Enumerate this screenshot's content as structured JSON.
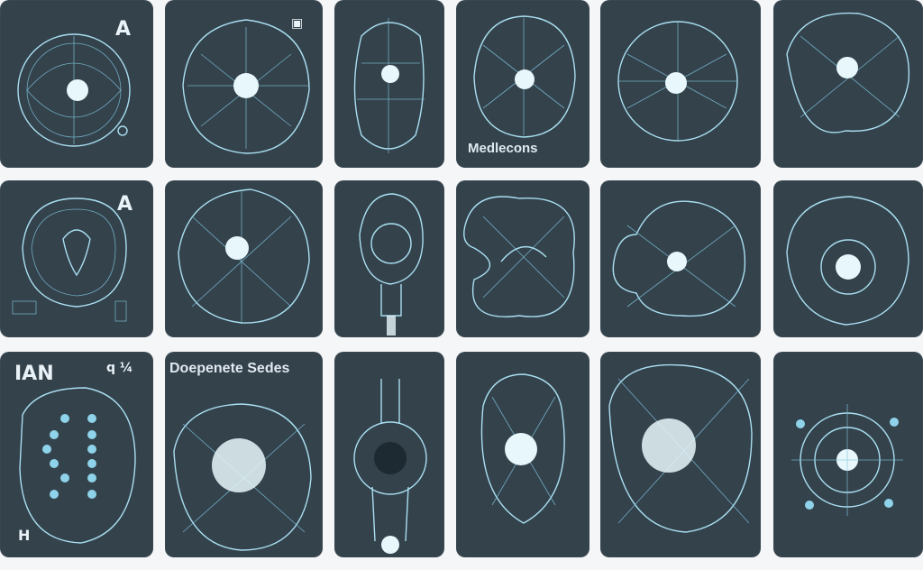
{
  "captions": {
    "medecons": "Medlecons",
    "deopenete": "Doepenete Sedes"
  },
  "marks": {
    "a1": "A",
    "a2": "A",
    "ian": "IAN",
    "h": "H",
    "small": "q ¼"
  },
  "colors": {
    "tile_bg": "#34424c",
    "glow": "#a9dff0",
    "page_bg": "#f4f6f7"
  }
}
